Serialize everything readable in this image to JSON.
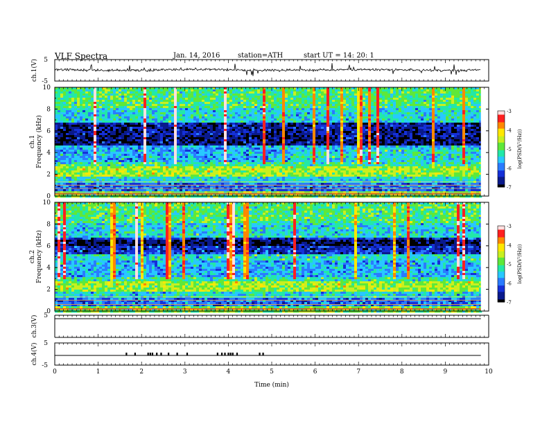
{
  "header": {
    "title": "VLF Spectra",
    "date": "Jan. 14, 2016",
    "station": "station=ATH",
    "start": "start UT =   14: 20: 1"
  },
  "chart_data": {
    "type": "heatmap",
    "x_axis": {
      "label": "Time (min)",
      "range": [
        0,
        10
      ],
      "ticks": [
        0,
        1,
        2,
        3,
        4,
        5,
        6,
        7,
        8,
        9,
        10
      ]
    },
    "panels": [
      {
        "id": "ch1-waveform",
        "type": "line",
        "ylabel": "ch.1(V)",
        "ylim": [
          -5,
          5
        ],
        "ytick_labels": [
          "5",
          "-5"
        ],
        "description_level": 0.0
      },
      {
        "id": "ch1-spectrogram",
        "type": "heatmap",
        "ylabel": "ch.1\nFrequency (kHz)",
        "ylabel_lines": [
          "ch.1",
          "Frequency (kHz)"
        ],
        "ylim": [
          0,
          10
        ],
        "ytick_labels": [
          "10",
          "8",
          "6",
          "4",
          "2",
          "0"
        ],
        "colorbar": {
          "label": "log(PSD(V²/Hz))",
          "range": [
            -7,
            -3
          ],
          "tick_labels": [
            "-3",
            "-4",
            "-5",
            "-6",
            "-7"
          ]
        }
      },
      {
        "id": "ch2-spectrogram",
        "type": "heatmap",
        "ylabel_lines": [
          "ch.2",
          "Frequency (kHz)"
        ],
        "ylim": [
          0,
          10
        ],
        "ytick_labels": [
          "10",
          "8",
          "6",
          "4",
          "2",
          "0"
        ],
        "colorbar": {
          "label": "log(PSD(V²/Hz))",
          "range": [
            -7,
            -3
          ],
          "tick_labels": [
            "-3",
            "-4",
            "-5",
            "-6",
            "-7"
          ]
        }
      },
      {
        "id": "ch3-waveform",
        "type": "line",
        "ylabel": "ch.3(V)",
        "ylim": [
          -5,
          5
        ],
        "ytick_labels": [
          "5"
        ],
        "level": 0.0
      },
      {
        "id": "ch4-waveform",
        "type": "line",
        "ylabel": "ch.4(V)",
        "ylim": [
          -5,
          5
        ],
        "ytick_labels": [
          "5",
          "-5"
        ],
        "level": -1.3,
        "pulses_min": [
          1.65,
          1.85,
          2.15,
          2.2,
          2.25,
          2.35,
          2.45,
          2.62,
          2.82,
          3.05,
          3.75,
          3.85,
          3.92,
          4.0,
          4.05,
          4.1,
          4.2,
          4.72,
          4.8
        ]
      }
    ],
    "colorscale": [
      "#000000",
      "#0a1a8c",
      "#1530d8",
      "#2a7bff",
      "#28c8ff",
      "#22e8a8",
      "#5ee83a",
      "#c8f020",
      "#ffe800",
      "#ff8800",
      "#ff2020",
      "#ffe0e0"
    ]
  }
}
